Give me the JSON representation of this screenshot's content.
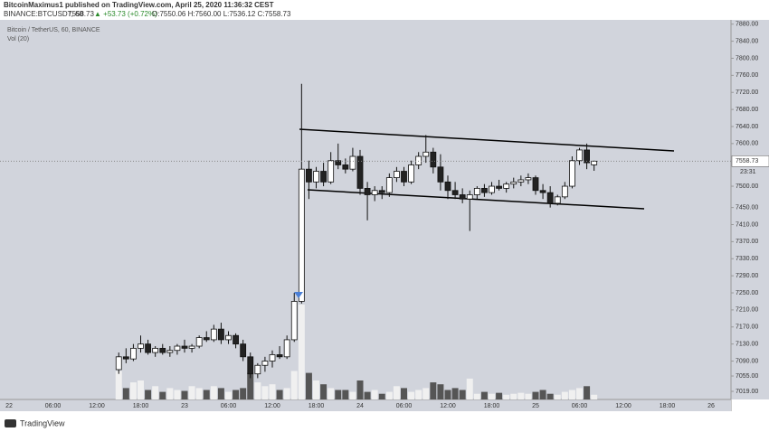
{
  "header": {
    "publisher": "BitcoinMaximus1 published on TradingView.com, April 25, 2020 11:36:32 CEST",
    "symbol": "BINANCE:BTCUSDT, 60",
    "last": "7558.73",
    "change": "▲ +53.73 (+0.72%)",
    "ohlc": "O:7550.06 H:7560.00 L:7536.12 C:7558.73"
  },
  "footer": {
    "brand": "TradingView"
  },
  "chart_data": {
    "type": "candlestick",
    "title": "Bitcoin / TetherUS, 60, BINANCE",
    "volume_title": "Vol (20)",
    "countdown": "23:31",
    "last_price": 7558.73,
    "last_price_label": "7558.73",
    "up_color": "#ffffff",
    "down_color": "#222222",
    "up_volume_color": "#f0f0f0",
    "down_volume_color": "#555555",
    "ylim": [
      7000,
      7890
    ],
    "yticks": [
      {
        "value": 7880,
        "label": "7880.00"
      },
      {
        "value": 7840,
        "label": "7840.00"
      },
      {
        "value": 7800,
        "label": "7800.00"
      },
      {
        "value": 7760,
        "label": "7760.00"
      },
      {
        "value": 7720,
        "label": "7720.00"
      },
      {
        "value": 7680,
        "label": "7680.00"
      },
      {
        "value": 7640,
        "label": "7640.00"
      },
      {
        "value": 7600,
        "label": "7600.00"
      },
      {
        "value": 7500,
        "label": "7500.00"
      },
      {
        "value": 7450,
        "label": "7450.00"
      },
      {
        "value": 7410,
        "label": "7410.00"
      },
      {
        "value": 7370,
        "label": "7370.00"
      },
      {
        "value": 7330,
        "label": "7330.00"
      },
      {
        "value": 7290,
        "label": "7290.00"
      },
      {
        "value": 7250,
        "label": "7250.00"
      },
      {
        "value": 7210,
        "label": "7210.00"
      },
      {
        "value": 7170,
        "label": "7170.00"
      },
      {
        "value": 7130,
        "label": "7130.00"
      },
      {
        "value": 7090,
        "label": "7090.00"
      },
      {
        "value": 7055,
        "label": "7055.00"
      },
      {
        "value": 7019,
        "label": "7019.00"
      }
    ],
    "x_labels": [
      "22",
      "06:00",
      "12:00",
      "18:00",
      "23",
      "06:00",
      "12:00",
      "18:00",
      "24",
      "06:00",
      "12:00",
      "18:00",
      "25",
      "06:00",
      "12:00",
      "18:00",
      "26"
    ],
    "open": [
      7070,
      7100,
      7095,
      7120,
      7130,
      7110,
      7120,
      7110,
      7115,
      7125,
      7120,
      7125,
      7145,
      7140,
      7165,
      7140,
      7150,
      7130,
      7100,
      7060,
      7080,
      7090,
      7105,
      7100,
      7140,
      7230,
      7540,
      7510,
      7535,
      7510,
      7560,
      7550,
      7540,
      7570,
      7495,
      7480,
      7490,
      7485,
      7520,
      7535,
      7510,
      7550,
      7570,
      7580,
      7545,
      7510,
      7490,
      7480,
      7470,
      7480,
      7495,
      7485,
      7500,
      7495,
      7505,
      7510,
      7515,
      7520,
      7490,
      7485,
      7460,
      7475,
      7500,
      7560,
      7585,
      7550.06
    ],
    "high": [
      7110,
      7120,
      7130,
      7150,
      7140,
      7125,
      7130,
      7125,
      7130,
      7140,
      7130,
      7150,
      7160,
      7175,
      7180,
      7160,
      7155,
      7140,
      7110,
      7085,
      7100,
      7115,
      7125,
      7150,
      7250,
      7740,
      7560,
      7545,
      7555,
      7580,
      7600,
      7565,
      7590,
      7585,
      7510,
      7500,
      7500,
      7530,
      7545,
      7545,
      7560,
      7580,
      7620,
      7590,
      7575,
      7525,
      7510,
      7495,
      7490,
      7500,
      7505,
      7510,
      7515,
      7510,
      7520,
      7525,
      7530,
      7525,
      7505,
      7500,
      7480,
      7510,
      7570,
      7590,
      7600,
      7560
    ],
    "low": [
      7060,
      7085,
      7090,
      7110,
      7105,
      7100,
      7105,
      7100,
      7105,
      7110,
      7110,
      7120,
      7135,
      7135,
      7130,
      7130,
      7120,
      7090,
      7050,
      7050,
      7065,
      7075,
      7095,
      7095,
      7135,
      7225,
      7470,
      7495,
      7500,
      7505,
      7540,
      7530,
      7535,
      7480,
      7420,
      7465,
      7470,
      7475,
      7510,
      7500,
      7505,
      7540,
      7555,
      7530,
      7490,
      7470,
      7470,
      7460,
      7395,
      7470,
      7475,
      7480,
      7490,
      7485,
      7495,
      7500,
      7505,
      7480,
      7470,
      7450,
      7455,
      7470,
      7495,
      7550,
      7540,
      7536.12
    ],
    "close": [
      7100,
      7095,
      7120,
      7130,
      7110,
      7120,
      7110,
      7115,
      7125,
      7120,
      7125,
      7145,
      7140,
      7165,
      7140,
      7150,
      7130,
      7100,
      7060,
      7080,
      7090,
      7105,
      7100,
      7140,
      7230,
      7540,
      7510,
      7535,
      7510,
      7560,
      7550,
      7540,
      7570,
      7495,
      7480,
      7490,
      7485,
      7520,
      7535,
      7510,
      7550,
      7570,
      7580,
      7545,
      7510,
      7490,
      7480,
      7470,
      7480,
      7495,
      7485,
      7500,
      7495,
      7505,
      7510,
      7515,
      7520,
      7490,
      7485,
      7460,
      7475,
      7500,
      7560,
      7585,
      7555,
      7558.73
    ],
    "volume": [
      30,
      12,
      18,
      20,
      10,
      14,
      8,
      12,
      10,
      9,
      14,
      12,
      10,
      14,
      12,
      8,
      10,
      12,
      28,
      18,
      14,
      16,
      10,
      12,
      30,
      100,
      28,
      20,
      16,
      12,
      10,
      10,
      8,
      20,
      8,
      10,
      6,
      8,
      14,
      12,
      8,
      10,
      12,
      18,
      16,
      10,
      12,
      10,
      22,
      6,
      8,
      6,
      7,
      5,
      6,
      7,
      6,
      8,
      10,
      6,
      5,
      8,
      10,
      12,
      14,
      5
    ]
  }
}
